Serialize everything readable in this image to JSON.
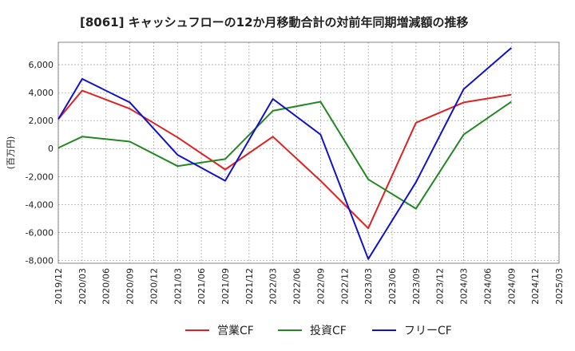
{
  "chart_data": {
    "type": "line",
    "title": "[8061]  キャッシュフローの12か月移動合計の対前年同期増減額の推移",
    "ylabel": "(百万円)",
    "xlabel": "",
    "ylim": [
      -8200,
      7600
    ],
    "yticks": [
      6000,
      4000,
      2000,
      0,
      -2000,
      -4000,
      -6000,
      -8000
    ],
    "ytick_labels": [
      "6,000",
      "4,000",
      "2,000",
      "0",
      "-2,000",
      "-4,000",
      "-6,000",
      "-8,000"
    ],
    "x": [
      "2019/12",
      "2020/03",
      "2020/06",
      "2020/09",
      "2020/12",
      "2021/03",
      "2021/06",
      "2021/09",
      "2021/12",
      "2022/03",
      "2022/06",
      "2022/09",
      "2022/12",
      "2023/03",
      "2023/06",
      "2023/09",
      "2023/12",
      "2024/03",
      "2024/06",
      "2024/09",
      "2024/12",
      "2025/03"
    ],
    "grid": true,
    "legend_position": "bottom",
    "series": [
      {
        "name": "営業CF",
        "color": "#dd2222",
        "values": [
          2100,
          4150,
          null,
          2850,
          null,
          800,
          null,
          -1500,
          null,
          850,
          null,
          -2300,
          null,
          -5700,
          null,
          1850,
          null,
          3300,
          null,
          3850,
          null,
          null
        ]
      },
      {
        "name": "投資CF",
        "color": "#228822",
        "values": [
          50,
          850,
          null,
          500,
          null,
          -1250,
          null,
          -750,
          null,
          2700,
          null,
          3350,
          null,
          -2200,
          null,
          -4300,
          null,
          1000,
          null,
          3350,
          null,
          null
        ]
      },
      {
        "name": "フリーCF",
        "color": "#1111cc",
        "values": [
          2100,
          4980,
          null,
          3300,
          null,
          -450,
          null,
          -2300,
          null,
          3550,
          null,
          1000,
          null,
          -7900,
          null,
          -2400,
          null,
          4250,
          null,
          7200,
          null,
          null
        ]
      }
    ]
  }
}
